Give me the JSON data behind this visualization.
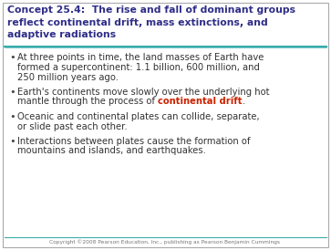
{
  "title_lines": [
    "Concept 25.4:  The rise and fall of dominant groups",
    "reflect continental drift, mass extinctions, and",
    "adaptive radiations"
  ],
  "title_color": "#2E2D88",
  "title_fontsize": 7.8,
  "separator_color": "#3AACAC",
  "background_color": "#FFFFFF",
  "border_color": "#AAAAAA",
  "bullet_color": "#333333",
  "bullet_fontsize": 7.2,
  "footer_text": "Copyright ©2008 Pearson Education, Inc., publishing as Pearson Benjamin Cummings",
  "footer_fontsize": 4.2,
  "footer_color": "#777777",
  "red_color": "#CC2200"
}
